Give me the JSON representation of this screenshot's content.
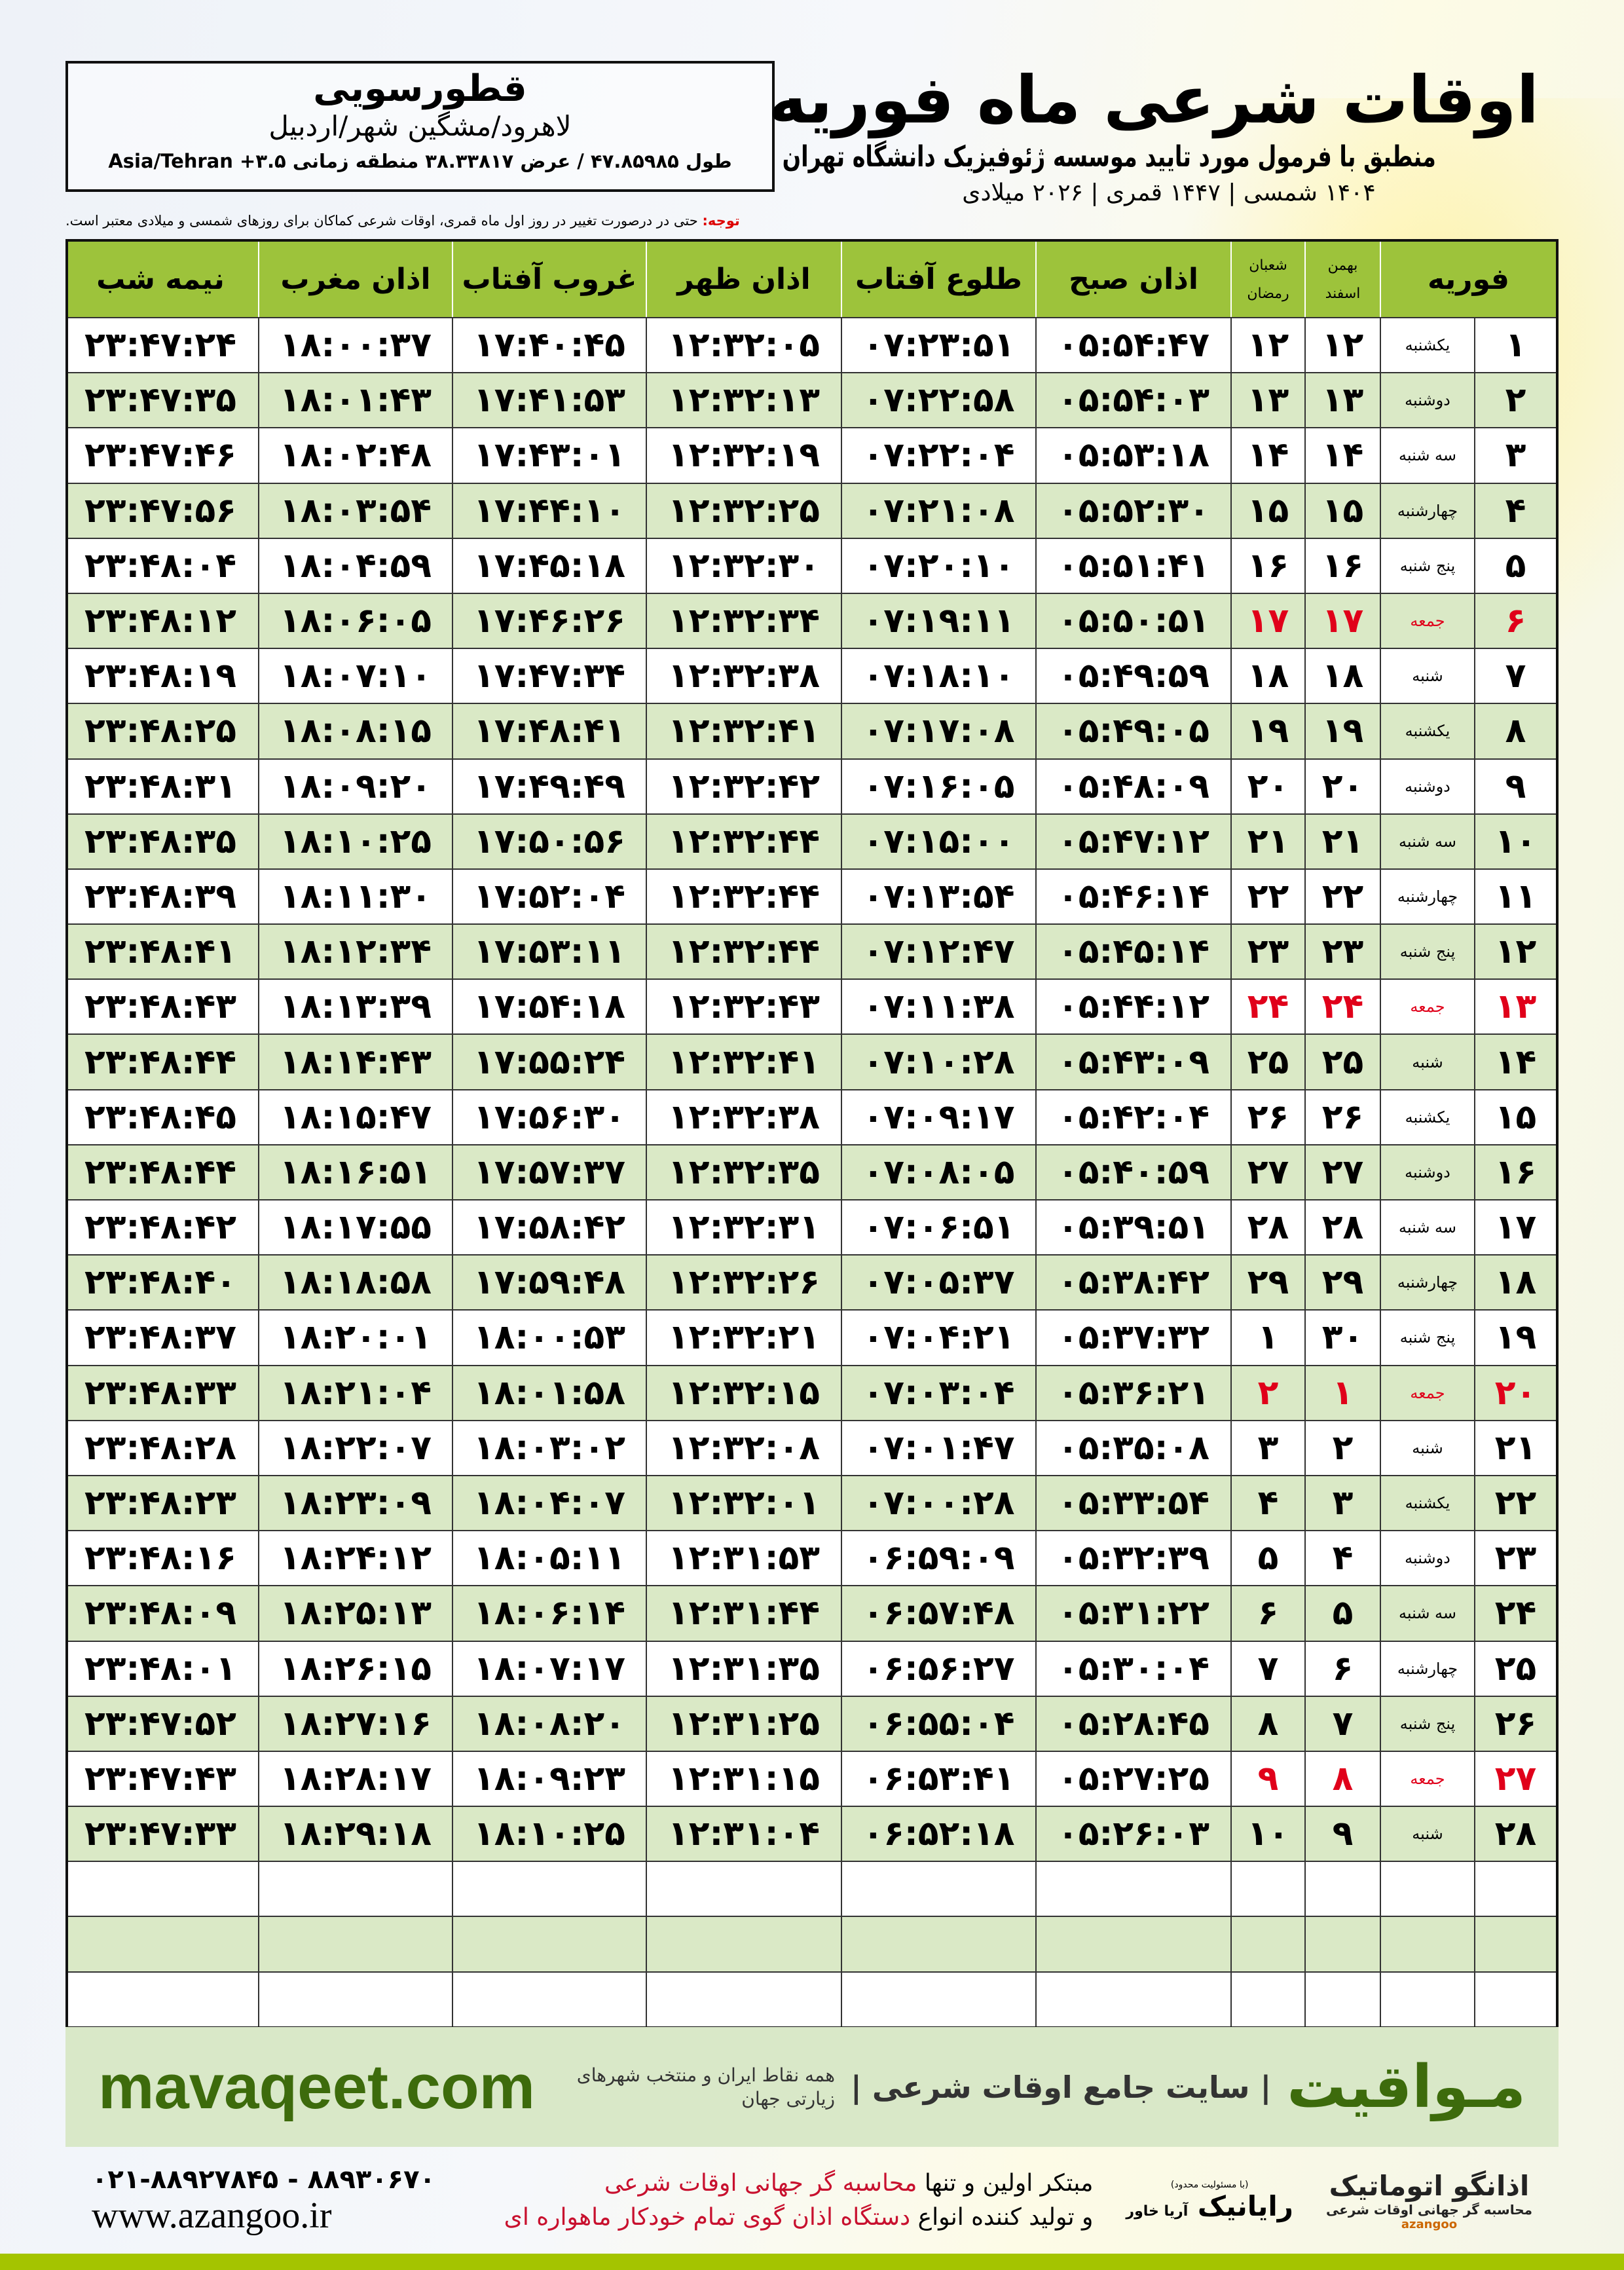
{
  "header": {
    "title": "اوقات شرعی ماه فوریه",
    "subtitle": "منطبق با فرمول مورد تایید موسسه ژئوفیزیک دانشگاه تهران",
    "years": "۱۴۰۴ شمسی | ۱۴۴۷ قمری | ۲۰۲۶ میلادی"
  },
  "location": {
    "city": "قطورسویی",
    "region": "لاهرود/مشگین شهر/اردبیل",
    "coords": "طول ۴۷.۸۵۹۸۵ / عرض ۳۸.۳۳۸۱۷ منطقه زمانی ۳.۵+ Asia/Tehran"
  },
  "note": {
    "label": "توجه:",
    "text": "حتی در درصورت تغییر در روز اول ماه قمری، اوقات شرعی کماکان برای روزهای شمسی و میلادی معتبر است."
  },
  "columns": {
    "month": "فوریه",
    "shamsi_top": "بهمن",
    "shamsi_bottom": "اسفند",
    "hijri_top": "شعبان",
    "hijri_bottom": "رمضان",
    "fajr": "اذان صبح",
    "sunrise": "طلوع آفتاب",
    "dhuhr": "اذان ظهر",
    "sunset": "غروب آفتاب",
    "maghrib": "اذان مغرب",
    "midnight": "نیمه شب"
  },
  "colors": {
    "header": "#9dc33b",
    "alt_row": "#dae9c6",
    "friday": "#e0001a",
    "brand_green": "#3d6b0c"
  },
  "rows": [
    [
      "۱",
      "یکشنبه",
      "۱۲",
      "۱۲",
      "۰۵:۵۴:۴۷",
      "۰۷:۲۳:۵۱",
      "۱۲:۳۲:۰۵",
      "۱۷:۴۰:۴۵",
      "۱۸:۰۰:۳۷",
      "۲۳:۴۷:۲۴"
    ],
    [
      "۲",
      "دوشنبه",
      "۱۳",
      "۱۳",
      "۰۵:۵۴:۰۳",
      "۰۷:۲۲:۵۸",
      "۱۲:۳۲:۱۳",
      "۱۷:۴۱:۵۳",
      "۱۸:۰۱:۴۳",
      "۲۳:۴۷:۳۵"
    ],
    [
      "۳",
      "سه شنبه",
      "۱۴",
      "۱۴",
      "۰۵:۵۳:۱۸",
      "۰۷:۲۲:۰۴",
      "۱۲:۳۲:۱۹",
      "۱۷:۴۳:۰۱",
      "۱۸:۰۲:۴۸",
      "۲۳:۴۷:۴۶"
    ],
    [
      "۴",
      "چهارشنبه",
      "۱۵",
      "۱۵",
      "۰۵:۵۲:۳۰",
      "۰۷:۲۱:۰۸",
      "۱۲:۳۲:۲۵",
      "۱۷:۴۴:۱۰",
      "۱۸:۰۳:۵۴",
      "۲۳:۴۷:۵۶"
    ],
    [
      "۵",
      "پنج شنبه",
      "۱۶",
      "۱۶",
      "۰۵:۵۱:۴۱",
      "۰۷:۲۰:۱۰",
      "۱۲:۳۲:۳۰",
      "۱۷:۴۵:۱۸",
      "۱۸:۰۴:۵۹",
      "۲۳:۴۸:۰۴"
    ],
    [
      "۶",
      "جمعه",
      "۱۷",
      "۱۷",
      "۰۵:۵۰:۵۱",
      "۰۷:۱۹:۱۱",
      "۱۲:۳۲:۳۴",
      "۱۷:۴۶:۲۶",
      "۱۸:۰۶:۰۵",
      "۲۳:۴۸:۱۲"
    ],
    [
      "۷",
      "شنبه",
      "۱۸",
      "۱۸",
      "۰۵:۴۹:۵۹",
      "۰۷:۱۸:۱۰",
      "۱۲:۳۲:۳۸",
      "۱۷:۴۷:۳۴",
      "۱۸:۰۷:۱۰",
      "۲۳:۴۸:۱۹"
    ],
    [
      "۸",
      "یکشنبه",
      "۱۹",
      "۱۹",
      "۰۵:۴۹:۰۵",
      "۰۷:۱۷:۰۸",
      "۱۲:۳۲:۴۱",
      "۱۷:۴۸:۴۱",
      "۱۸:۰۸:۱۵",
      "۲۳:۴۸:۲۵"
    ],
    [
      "۹",
      "دوشنبه",
      "۲۰",
      "۲۰",
      "۰۵:۴۸:۰۹",
      "۰۷:۱۶:۰۵",
      "۱۲:۳۲:۴۲",
      "۱۷:۴۹:۴۹",
      "۱۸:۰۹:۲۰",
      "۲۳:۴۸:۳۱"
    ],
    [
      "۱۰",
      "سه شنبه",
      "۲۱",
      "۲۱",
      "۰۵:۴۷:۱۲",
      "۰۷:۱۵:۰۰",
      "۱۲:۳۲:۴۴",
      "۱۷:۵۰:۵۶",
      "۱۸:۱۰:۲۵",
      "۲۳:۴۸:۳۵"
    ],
    [
      "۱۱",
      "چهارشنبه",
      "۲۲",
      "۲۲",
      "۰۵:۴۶:۱۴",
      "۰۷:۱۳:۵۴",
      "۱۲:۳۲:۴۴",
      "۱۷:۵۲:۰۴",
      "۱۸:۱۱:۳۰",
      "۲۳:۴۸:۳۹"
    ],
    [
      "۱۲",
      "پنج شنبه",
      "۲۳",
      "۲۳",
      "۰۵:۴۵:۱۴",
      "۰۷:۱۲:۴۷",
      "۱۲:۳۲:۴۴",
      "۱۷:۵۳:۱۱",
      "۱۸:۱۲:۳۴",
      "۲۳:۴۸:۴۱"
    ],
    [
      "۱۳",
      "جمعه",
      "۲۴",
      "۲۴",
      "۰۵:۴۴:۱۲",
      "۰۷:۱۱:۳۸",
      "۱۲:۳۲:۴۳",
      "۱۷:۵۴:۱۸",
      "۱۸:۱۳:۳۹",
      "۲۳:۴۸:۴۳"
    ],
    [
      "۱۴",
      "شنبه",
      "۲۵",
      "۲۵",
      "۰۵:۴۳:۰۹",
      "۰۷:۱۰:۲۸",
      "۱۲:۳۲:۴۱",
      "۱۷:۵۵:۲۴",
      "۱۸:۱۴:۴۳",
      "۲۳:۴۸:۴۴"
    ],
    [
      "۱۵",
      "یکشنبه",
      "۲۶",
      "۲۶",
      "۰۵:۴۲:۰۴",
      "۰۷:۰۹:۱۷",
      "۱۲:۳۲:۳۸",
      "۱۷:۵۶:۳۰",
      "۱۸:۱۵:۴۷",
      "۲۳:۴۸:۴۵"
    ],
    [
      "۱۶",
      "دوشنبه",
      "۲۷",
      "۲۷",
      "۰۵:۴۰:۵۹",
      "۰۷:۰۸:۰۵",
      "۱۲:۳۲:۳۵",
      "۱۷:۵۷:۳۷",
      "۱۸:۱۶:۵۱",
      "۲۳:۴۸:۴۴"
    ],
    [
      "۱۷",
      "سه شنبه",
      "۲۸",
      "۲۸",
      "۰۵:۳۹:۵۱",
      "۰۷:۰۶:۵۱",
      "۱۲:۳۲:۳۱",
      "۱۷:۵۸:۴۲",
      "۱۸:۱۷:۵۵",
      "۲۳:۴۸:۴۲"
    ],
    [
      "۱۸",
      "چهارشنبه",
      "۲۹",
      "۲۹",
      "۰۵:۳۸:۴۲",
      "۰۷:۰۵:۳۷",
      "۱۲:۳۲:۲۶",
      "۱۷:۵۹:۴۸",
      "۱۸:۱۸:۵۸",
      "۲۳:۴۸:۴۰"
    ],
    [
      "۱۹",
      "پنج شنبه",
      "۳۰",
      "۱",
      "۰۵:۳۷:۳۲",
      "۰۷:۰۴:۲۱",
      "۱۲:۳۲:۲۱",
      "۱۸:۰۰:۵۳",
      "۱۸:۲۰:۰۱",
      "۲۳:۴۸:۳۷"
    ],
    [
      "۲۰",
      "جمعه",
      "۱",
      "۲",
      "۰۵:۳۶:۲۱",
      "۰۷:۰۳:۰۴",
      "۱۲:۳۲:۱۵",
      "۱۸:۰۱:۵۸",
      "۱۸:۲۱:۰۴",
      "۲۳:۴۸:۳۳"
    ],
    [
      "۲۱",
      "شنبه",
      "۲",
      "۳",
      "۰۵:۳۵:۰۸",
      "۰۷:۰۱:۴۷",
      "۱۲:۳۲:۰۸",
      "۱۸:۰۳:۰۲",
      "۱۸:۲۲:۰۷",
      "۲۳:۴۸:۲۸"
    ],
    [
      "۲۲",
      "یکشنبه",
      "۳",
      "۴",
      "۰۵:۳۳:۵۴",
      "۰۷:۰۰:۲۸",
      "۱۲:۳۲:۰۱",
      "۱۸:۰۴:۰۷",
      "۱۸:۲۳:۰۹",
      "۲۳:۴۸:۲۳"
    ],
    [
      "۲۳",
      "دوشنبه",
      "۴",
      "۵",
      "۰۵:۳۲:۳۹",
      "۰۶:۵۹:۰۹",
      "۱۲:۳۱:۵۳",
      "۱۸:۰۵:۱۱",
      "۱۸:۲۴:۱۲",
      "۲۳:۴۸:۱۶"
    ],
    [
      "۲۴",
      "سه شنبه",
      "۵",
      "۶",
      "۰۵:۳۱:۲۲",
      "۰۶:۵۷:۴۸",
      "۱۲:۳۱:۴۴",
      "۱۸:۰۶:۱۴",
      "۱۸:۲۵:۱۳",
      "۲۳:۴۸:۰۹"
    ],
    [
      "۲۵",
      "چهارشنبه",
      "۶",
      "۷",
      "۰۵:۳۰:۰۴",
      "۰۶:۵۶:۲۷",
      "۱۲:۳۱:۳۵",
      "۱۸:۰۷:۱۷",
      "۱۸:۲۶:۱۵",
      "۲۳:۴۸:۰۱"
    ],
    [
      "۲۶",
      "پنج شنبه",
      "۷",
      "۸",
      "۰۵:۲۸:۴۵",
      "۰۶:۵۵:۰۴",
      "۱۲:۳۱:۲۵",
      "۱۸:۰۸:۲۰",
      "۱۸:۲۷:۱۶",
      "۲۳:۴۷:۵۲"
    ],
    [
      "۲۷",
      "جمعه",
      "۸",
      "۹",
      "۰۵:۲۷:۲۵",
      "۰۶:۵۳:۴۱",
      "۱۲:۳۱:۱۵",
      "۱۸:۰۹:۲۳",
      "۱۸:۲۸:۱۷",
      "۲۳:۴۷:۴۳"
    ],
    [
      "۲۸",
      "شنبه",
      "۹",
      "۱۰",
      "۰۵:۲۶:۰۳",
      "۰۶:۵۲:۱۸",
      "۱۲:۳۱:۰۴",
      "۱۸:۱۰:۲۵",
      "۱۸:۲۹:۱۸",
      "۲۳:۴۷:۳۳"
    ]
  ],
  "friday_label": "جمعه",
  "footer": {
    "brand": "مـواقیت",
    "site": "| سایت جامع اوقات شرعی |",
    "tagline": "همه نقاط ایران و منتخب شهرهای زیارتی جهان",
    "url": "mavaqeet.com"
  },
  "bottom": {
    "line1_a": "مبتکر اولین و تنها ",
    "line1_b": "محاسبه گر جهانی اوقات شرعی",
    "line2_a": "و تولید کننده انواع ",
    "line2_b": "دستگاه اذان گوی تمام خودکار ماهواره ای",
    "phone": "۰۲۱-۸۸۹۲۷۸۴۵ - ۸۸۹۳۰۶۷۰",
    "website": "www.azangoo.ir",
    "logo1": "اذانگو اتوماتیک",
    "logo1_sub": "محاسبه گر جهانی اوقات شرعی",
    "logo1_en": "azangoo",
    "logo2": "رایانیک",
    "logo2_sub": "آریا خاور",
    "logo2_note": "(با مسئولیت محدود)"
  }
}
